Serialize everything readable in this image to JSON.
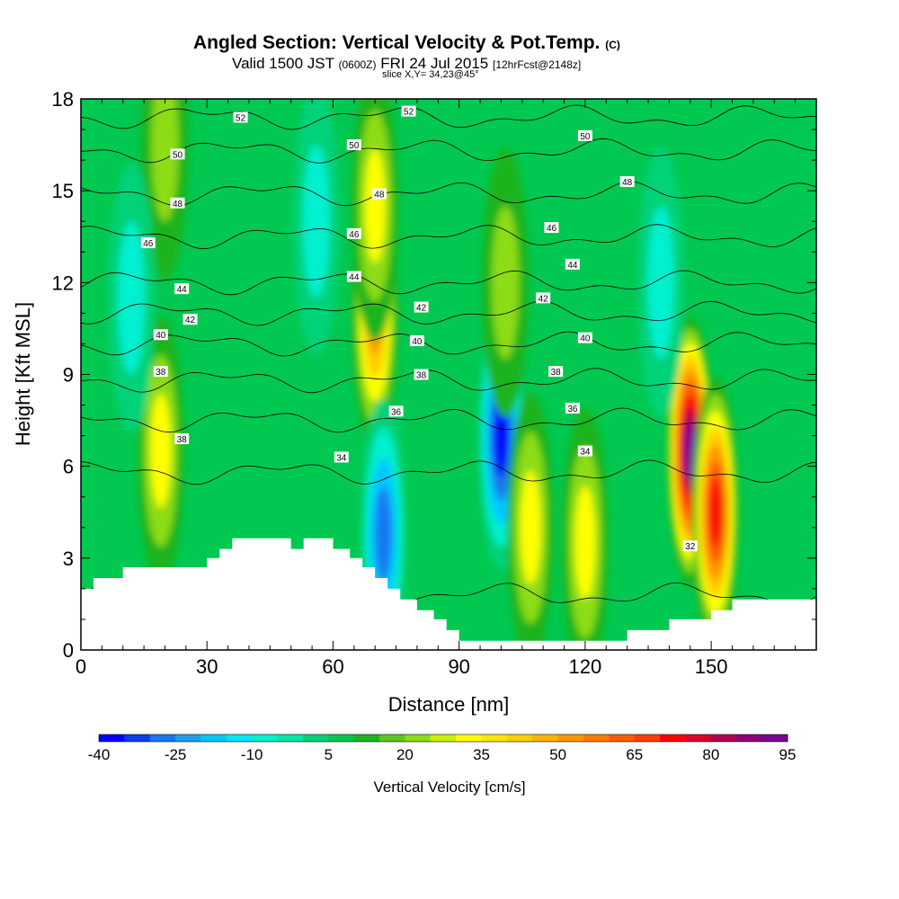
{
  "title": {
    "main": "Angled Section: Vertical Velocity & Pot.Temp.",
    "main_suffix": "(C)",
    "valid_prefix": "Valid 1500 JST",
    "valid_utc": "(0600Z)",
    "valid_date": "FRI 24 Jul 2015",
    "forecast": "[12hrFcst@2148z]",
    "slice": "slice X,Y= 34,23@45°"
  },
  "chart_data": {
    "type": "heatmap",
    "xlabel": "Distance [nm]",
    "ylabel": "Height [Kft MSL]",
    "xlim": [
      0,
      175
    ],
    "ylim": [
      0,
      18
    ],
    "x_ticks": [
      "0",
      "30",
      "60",
      "90",
      "120",
      "150"
    ],
    "y_ticks": [
      "0",
      "3",
      "6",
      "9",
      "12",
      "15",
      "18"
    ],
    "colorbar": {
      "title": "Vertical Velocity [cm/s]",
      "min": -40,
      "max": 95,
      "step": 5,
      "tick_labels": [
        "-40",
        "-25",
        "-10",
        "5",
        "20",
        "35",
        "50",
        "65",
        "80",
        "95"
      ],
      "colors": [
        "#0000ff",
        "#0a3cf0",
        "#1478f0",
        "#1ea0f0",
        "#00c8ff",
        "#00e6ff",
        "#00f0d0",
        "#00e6a0",
        "#00d278",
        "#00c850",
        "#1eb41e",
        "#5ac81e",
        "#8cdc14",
        "#c8f000",
        "#ffff00",
        "#ffe600",
        "#ffcc00",
        "#ffb400",
        "#ff9600",
        "#ff7800",
        "#ff5a00",
        "#ff3c00",
        "#ff0000",
        "#dc0028",
        "#b40050",
        "#8c0078",
        "#780096"
      ]
    },
    "w_features": [
      {
        "x": 19,
        "z": 6.5,
        "w": 35
      },
      {
        "x": 20,
        "z": 16.5,
        "w": 25
      },
      {
        "x": 70,
        "z": 11,
        "w": 55
      },
      {
        "x": 70,
        "z": 14.5,
        "w": 30
      },
      {
        "x": 100,
        "z": 7,
        "w": -40
      },
      {
        "x": 72,
        "z": 3.8,
        "w": -30
      },
      {
        "x": 107,
        "z": 4,
        "w": 35
      },
      {
        "x": 120,
        "z": 3.5,
        "w": 30
      },
      {
        "x": 145,
        "z": 6.5,
        "w": 95
      },
      {
        "x": 151,
        "z": 4.5,
        "w": 70
      },
      {
        "x": 12,
        "z": 11.5,
        "w": -12
      },
      {
        "x": 56,
        "z": 14,
        "w": -15
      },
      {
        "x": 101,
        "z": 12,
        "w": 25
      },
      {
        "x": 138,
        "z": 12,
        "w": -10
      }
    ],
    "terrain": {
      "x": [
        0,
        3,
        3,
        10,
        10,
        20,
        20,
        30,
        30,
        33,
        33,
        36,
        36,
        50,
        50,
        53,
        53,
        60,
        60,
        64,
        64,
        67,
        67,
        70,
        70,
        73,
        73,
        76,
        76,
        80,
        80,
        84,
        84,
        87,
        87,
        90,
        90,
        130,
        130,
        140,
        140,
        145,
        145,
        150,
        150,
        155,
        155,
        162,
        162,
        175
      ],
      "z": [
        2.0,
        2.0,
        2.35,
        2.35,
        2.7,
        2.7,
        2.7,
        2.7,
        3.0,
        3.0,
        3.3,
        3.3,
        3.65,
        3.65,
        3.3,
        3.3,
        3.65,
        3.65,
        3.3,
        3.3,
        3.0,
        3.0,
        2.7,
        2.7,
        2.35,
        2.35,
        2.0,
        2.0,
        1.65,
        1.65,
        1.3,
        1.3,
        1.0,
        1.0,
        0.65,
        0.65,
        0.3,
        0.3,
        0.65,
        0.65,
        1.0,
        1.0,
        1.0,
        1.0,
        1.3,
        1.3,
        1.65,
        1.65,
        1.65,
        1.65
      ]
    },
    "isentropes": [
      {
        "theta": 32,
        "z": 1.8
      },
      {
        "theta": 34,
        "z": 5.8
      },
      {
        "theta": 36,
        "z": 7.5
      },
      {
        "theta": 38,
        "z": 8.8
      },
      {
        "theta": 40,
        "z": 10.0
      },
      {
        "theta": 42,
        "z": 11.0
      },
      {
        "theta": 44,
        "z": 12.0
      },
      {
        "theta": 46,
        "z": 13.5
      },
      {
        "theta": 48,
        "z": 14.9
      },
      {
        "theta": 50,
        "z": 16.3
      },
      {
        "theta": 52,
        "z": 17.4
      }
    ],
    "contour_labels": [
      {
        "text": "52",
        "x": 38,
        "z": 17.4
      },
      {
        "text": "52",
        "x": 78,
        "z": 17.6
      },
      {
        "text": "50",
        "x": 23,
        "z": 16.2
      },
      {
        "text": "50",
        "x": 65,
        "z": 16.5
      },
      {
        "text": "50",
        "x": 120,
        "z": 16.8
      },
      {
        "text": "48",
        "x": 23,
        "z": 14.6
      },
      {
        "text": "48",
        "x": 71,
        "z": 14.9
      },
      {
        "text": "48",
        "x": 130,
        "z": 15.3
      },
      {
        "text": "46",
        "x": 16,
        "z": 13.3
      },
      {
        "text": "46",
        "x": 65,
        "z": 13.6
      },
      {
        "text": "46",
        "x": 112,
        "z": 13.8
      },
      {
        "text": "44",
        "x": 24,
        "z": 11.8
      },
      {
        "text": "44",
        "x": 65,
        "z": 12.2
      },
      {
        "text": "44",
        "x": 117,
        "z": 12.6
      },
      {
        "text": "42",
        "x": 26,
        "z": 10.8
      },
      {
        "text": "42",
        "x": 81,
        "z": 11.2
      },
      {
        "text": "42",
        "x": 110,
        "z": 11.5
      },
      {
        "text": "40",
        "x": 19,
        "z": 10.3
      },
      {
        "text": "40",
        "x": 80,
        "z": 10.1
      },
      {
        "text": "40",
        "x": 120,
        "z": 10.2
      },
      {
        "text": "38",
        "x": 19,
        "z": 9.1
      },
      {
        "text": "38",
        "x": 81,
        "z": 9.0
      },
      {
        "text": "38",
        "x": 113,
        "z": 9.1
      },
      {
        "text": "38",
        "x": 24,
        "z": 6.9
      },
      {
        "text": "36",
        "x": 75,
        "z": 7.8
      },
      {
        "text": "36",
        "x": 117,
        "z": 7.9
      },
      {
        "text": "34",
        "x": 62,
        "z": 6.3
      },
      {
        "text": "34",
        "x": 120,
        "z": 6.5
      },
      {
        "text": "32",
        "x": 145,
        "z": 3.4
      }
    ]
  }
}
